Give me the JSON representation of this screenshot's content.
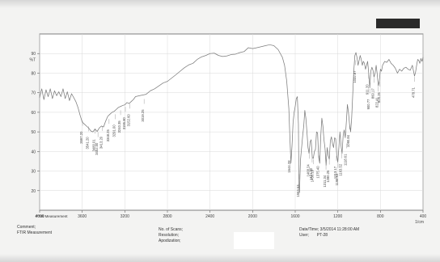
{
  "chart_data": {
    "type": "line",
    "title": "",
    "xlabel": "",
    "ylabel": "%T",
    "xlim": [
      4000,
      400
    ],
    "ylim": [
      10,
      100
    ],
    "grid": true,
    "series": [
      {
        "values": [
          [
            4000,
            67.5
          ],
          [
            3980,
            72.0
          ],
          [
            3960,
            66.5
          ],
          [
            3940,
            71.5
          ],
          [
            3920,
            68.0
          ],
          [
            3900,
            72.0
          ],
          [
            3880,
            67.0
          ],
          [
            3860,
            71.0
          ],
          [
            3840,
            68.5
          ],
          [
            3820,
            70.5
          ],
          [
            3800,
            68.0
          ],
          [
            3780,
            72.0
          ],
          [
            3760,
            67.0
          ],
          [
            3740,
            70.5
          ],
          [
            3720,
            66.0
          ],
          [
            3700,
            69.5
          ],
          [
            3680,
            67.5
          ],
          [
            3660,
            65.5
          ],
          [
            3640,
            62.5
          ],
          [
            3620,
            58.5
          ],
          [
            3600,
            55.0
          ],
          [
            3580,
            54.0
          ],
          [
            3560,
            53.0
          ],
          [
            3540,
            52.0
          ],
          [
            3520,
            50.5
          ],
          [
            3500,
            50.0
          ],
          [
            3480,
            51.5
          ],
          [
            3460,
            50.2
          ],
          [
            3440,
            52.0
          ],
          [
            3420,
            53.0
          ],
          [
            3400,
            52.5
          ],
          [
            3380,
            55.5
          ],
          [
            3360,
            58.0
          ],
          [
            3340,
            59.0
          ],
          [
            3320,
            60.0
          ],
          [
            3300,
            60.5
          ],
          [
            3280,
            61.5
          ],
          [
            3260,
            62.5
          ],
          [
            3240,
            63.0
          ],
          [
            3220,
            63.5
          ],
          [
            3200,
            63.8
          ],
          [
            3180,
            65.0
          ],
          [
            3160,
            64.5
          ],
          [
            3140,
            65.5
          ],
          [
            3120,
            66.5
          ],
          [
            3100,
            68.0
          ],
          [
            3060,
            68.5
          ],
          [
            3000,
            69.2
          ],
          [
            2960,
            71.0
          ],
          [
            2920,
            72.0
          ],
          [
            2880,
            73.5
          ],
          [
            2840,
            75.0
          ],
          [
            2800,
            75.8
          ],
          [
            2760,
            77.5
          ],
          [
            2720,
            79.2
          ],
          [
            2680,
            81.0
          ],
          [
            2640,
            82.8
          ],
          [
            2600,
            84.2
          ],
          [
            2560,
            85.0
          ],
          [
            2520,
            87.0
          ],
          [
            2480,
            88.3
          ],
          [
            2440,
            89.0
          ],
          [
            2400,
            90.0
          ],
          [
            2360,
            90.2
          ],
          [
            2320,
            89.0
          ],
          [
            2280,
            88.5
          ],
          [
            2240,
            88.8
          ],
          [
            2200,
            89.5
          ],
          [
            2160,
            89.7
          ],
          [
            2120,
            90.5
          ],
          [
            2080,
            91.0
          ],
          [
            2040,
            93.0
          ],
          [
            2000,
            92.5
          ],
          [
            1960,
            93.0
          ],
          [
            1920,
            93.5
          ],
          [
            1880,
            94.0
          ],
          [
            1840,
            94.5
          ],
          [
            1800,
            94.0
          ],
          [
            1760,
            92.0
          ],
          [
            1720,
            88.0
          ],
          [
            1700,
            84.0
          ],
          [
            1680,
            76.0
          ],
          [
            1660,
            62.0
          ],
          [
            1650,
            47.0
          ],
          [
            1640,
            34.0
          ],
          [
            1630,
            43.0
          ],
          [
            1620,
            55.0
          ],
          [
            1610,
            60.0
          ],
          [
            1600,
            63.0
          ],
          [
            1590,
            67.0
          ],
          [
            1580,
            68.0
          ],
          [
            1570,
            54.0
          ],
          [
            1565,
            22.0
          ],
          [
            1560,
            19.0
          ],
          [
            1555,
            28.0
          ],
          [
            1550,
            36.0
          ],
          [
            1540,
            42.0
          ],
          [
            1530,
            48.0
          ],
          [
            1520,
            53.0
          ],
          [
            1510,
            61.0
          ],
          [
            1500,
            57.0
          ],
          [
            1490,
            50.0
          ],
          [
            1480,
            42.0
          ],
          [
            1470,
            39.0
          ],
          [
            1460,
            45.0
          ],
          [
            1450,
            46.0
          ],
          [
            1440,
            37.0
          ],
          [
            1430,
            36.5
          ],
          [
            1420,
            40.0
          ],
          [
            1410,
            41.0
          ],
          [
            1400,
            50.0
          ],
          [
            1390,
            49.5
          ],
          [
            1380,
            37.0
          ],
          [
            1370,
            34.0
          ],
          [
            1360,
            48.0
          ],
          [
            1350,
            57.0
          ],
          [
            1340,
            53.0
          ],
          [
            1330,
            46.0
          ],
          [
            1320,
            41.5
          ],
          [
            1310,
            33.0
          ],
          [
            1300,
            42.0
          ],
          [
            1290,
            38.0
          ],
          [
            1280,
            36.0
          ],
          [
            1270,
            45.5
          ],
          [
            1260,
            47.5
          ],
          [
            1250,
            44.0
          ],
          [
            1240,
            42.0
          ],
          [
            1230,
            47.0
          ],
          [
            1220,
            46.5
          ],
          [
            1210,
            38.0
          ],
          [
            1200,
            34.5
          ],
          [
            1190,
            42.0
          ],
          [
            1180,
            50.0
          ],
          [
            1170,
            43.0
          ],
          [
            1160,
            39.0
          ],
          [
            1150,
            48.0
          ],
          [
            1140,
            51.0
          ],
          [
            1130,
            47.0
          ],
          [
            1120,
            55.0
          ],
          [
            1110,
            64.0
          ],
          [
            1100,
            60.0
          ],
          [
            1090,
            54.0
          ],
          [
            1080,
            50.0
          ],
          [
            1070,
            57.0
          ],
          [
            1060,
            69.0
          ],
          [
            1050,
            81.0
          ],
          [
            1040,
            89.0
          ],
          [
            1030,
            90.5
          ],
          [
            1020,
            88.0
          ],
          [
            1010,
            84.0
          ],
          [
            1000,
            86.5
          ],
          [
            990,
            89.0
          ],
          [
            980,
            87.0
          ],
          [
            970,
            84.0
          ],
          [
            960,
            86.0
          ],
          [
            950,
            85.0
          ],
          [
            940,
            82.0
          ],
          [
            930,
            84.0
          ],
          [
            920,
            86.0
          ],
          [
            910,
            80.0
          ],
          [
            900,
            72.5
          ],
          [
            890,
            81.0
          ],
          [
            880,
            83.0
          ],
          [
            870,
            81.5
          ],
          [
            860,
            78.0
          ],
          [
            850,
            80.0
          ],
          [
            840,
            84.0
          ],
          [
            830,
            79.5
          ],
          [
            820,
            73.5
          ],
          [
            810,
            76.0
          ],
          [
            800,
            82.0
          ],
          [
            790,
            81.0
          ],
          [
            780,
            84.0
          ],
          [
            760,
            86.0
          ],
          [
            740,
            85.5
          ],
          [
            720,
            87.0
          ],
          [
            700,
            85.0
          ],
          [
            680,
            84.0
          ],
          [
            660,
            82.5
          ],
          [
            640,
            80.0
          ],
          [
            620,
            82.0
          ],
          [
            600,
            81.0
          ],
          [
            580,
            82.5
          ],
          [
            560,
            83.0
          ],
          [
            540,
            82.0
          ],
          [
            520,
            81.5
          ],
          [
            500,
            84.0
          ],
          [
            480,
            78.5
          ],
          [
            470,
            80.5
          ],
          [
            460,
            84.0
          ],
          [
            450,
            87.0
          ],
          [
            440,
            86.5
          ],
          [
            430,
            85.0
          ],
          [
            420,
            87.5
          ],
          [
            410,
            86.0
          ],
          [
            400,
            88.0
          ]
        ]
      }
    ]
  },
  "axis": {
    "y_unit": "%T",
    "x_unit_label": "1/cm",
    "x_ticks": [
      4000,
      3600,
      3200,
      2800,
      2400,
      2000,
      1600,
      1200,
      800,
      400
    ],
    "y_ticks": [
      90,
      80,
      70,
      60,
      50,
      40,
      30,
      20
    ]
  },
  "peaks": [
    {
      "x": 3597,
      "y": 56.0,
      "label": "3597.20"
    },
    {
      "x": 3541,
      "y": 53.2,
      "label": "3541.20"
    },
    {
      "x": 3480,
      "y": 52.0,
      "label": "3480.01"
    },
    {
      "x": 3452,
      "y": 50.2,
      "label": "3452.00"
    },
    {
      "x": 3413,
      "y": 53.4,
      "label": "3413.20"
    },
    {
      "x": 3348,
      "y": 57.0,
      "label": "3348.25"
    },
    {
      "x": 3291,
      "y": 59.4,
      "label": "3291.00"
    },
    {
      "x": 3240,
      "y": 61.5,
      "label": "3240.35"
    },
    {
      "x": 3195,
      "y": 63.2,
      "label": "3195.80"
    },
    {
      "x": 3152,
      "y": 64.8,
      "label": "3152.60"
    },
    {
      "x": 3019,
      "y": 67.2,
      "label": "3019.25"
    },
    {
      "x": 1644,
      "y": 41.2,
      "label": "1644.28"
    },
    {
      "x": 1563,
      "y": 28.8,
      "label": "1563.53"
    },
    {
      "x": 1468,
      "y": 39.2,
      "label": "1468.24"
    },
    {
      "x": 1441,
      "y": 37.3,
      "label": "1441.30"
    },
    {
      "x": 1430,
      "y": 36.4,
      "label": "1430.19"
    },
    {
      "x": 1375,
      "y": 38.3,
      "label": "1375.40"
    },
    {
      "x": 1311,
      "y": 33.6,
      "label": "1311.34"
    },
    {
      "x": 1280,
      "y": 36.2,
      "label": "1280.26"
    },
    {
      "x": 1213,
      "y": 38.1,
      "label": "1213.17"
    },
    {
      "x": 1198,
      "y": 34.5,
      "label": "1198.63"
    },
    {
      "x": 1163,
      "y": 39.4,
      "label": "1163.52"
    },
    {
      "x": 1118,
      "y": 44.5,
      "label": "1118.61"
    },
    {
      "x": 1090,
      "y": 54.2,
      "label": "1090.84"
    },
    {
      "x": 1032,
      "y": 87.0,
      "label": "1032.87"
    },
    {
      "x": 911,
      "y": 80.0,
      "label": "911.20"
    },
    {
      "x": 900,
      "y": 72.5,
      "label": "900.77"
    },
    {
      "x": 860,
      "y": 78.0,
      "label": "860.17"
    },
    {
      "x": 822,
      "y": 73.5,
      "label": "822.41"
    },
    {
      "x": 804,
      "y": 76.0,
      "label": "804.26"
    },
    {
      "x": 478,
      "y": 78.5,
      "label": "478.71"
    }
  ],
  "footer": {
    "left_label": "FTIR Measurement",
    "comment_label": "Comment;",
    "comment_value": "FTIR Measurement",
    "scans_label": "No. of Scans;",
    "resolution_label": "Resolution;",
    "apodization_label": "Apodization;",
    "datetime_label": "Date/Time; 3/5/2014 11:28:00 AM",
    "user_label": "User;",
    "user_value": "PT-28"
  },
  "colors": {
    "background": "#f3f3f2",
    "plot_background": "#ffffff",
    "grid": "#d9d9d9",
    "axis": "#606060",
    "line": "#7c7c7c",
    "text": "#333333"
  }
}
